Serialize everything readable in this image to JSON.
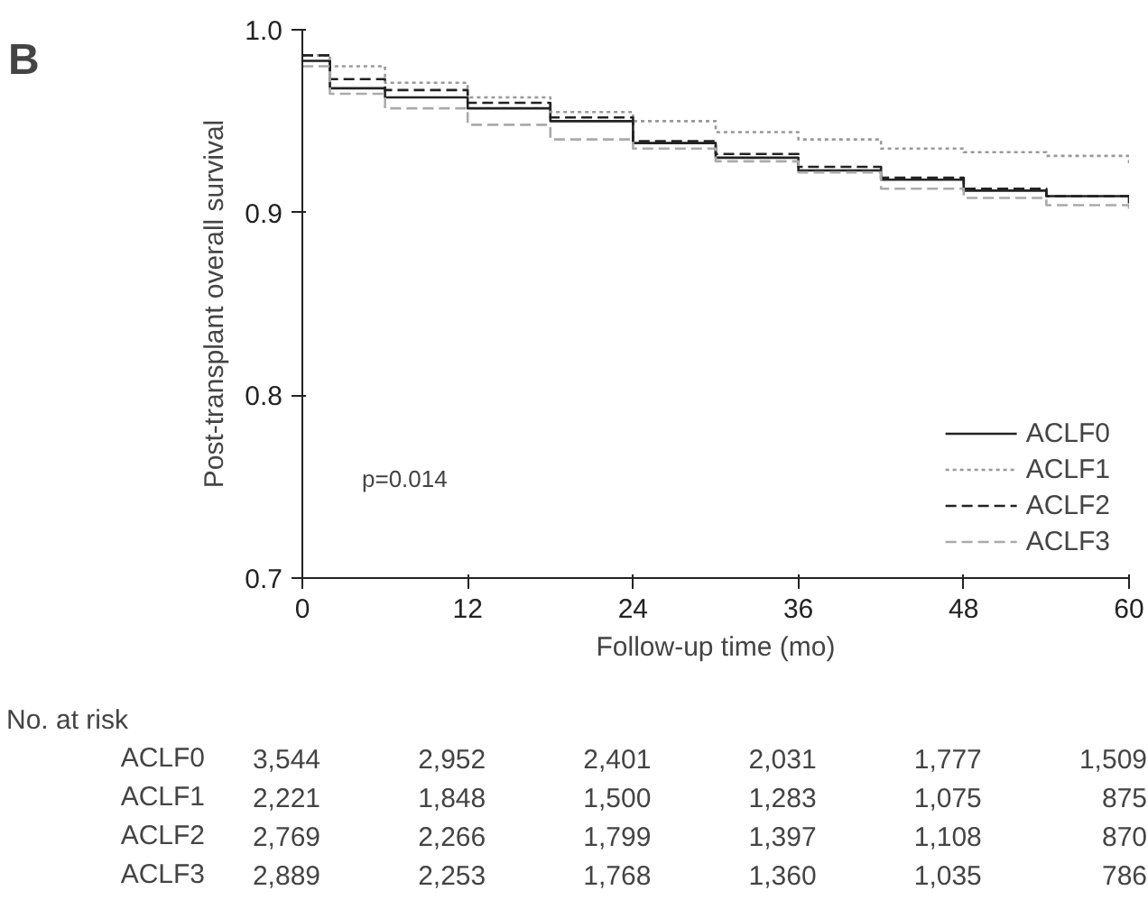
{
  "chart_data": {
    "type": "step",
    "xlabel": "Follow-up time (mo)",
    "ylabel": "Post-transplant overall survival",
    "xlim": [
      0,
      60
    ],
    "ylim": [
      0.7,
      1.0
    ],
    "xticks": [
      0,
      12,
      24,
      36,
      48,
      60
    ],
    "yticks": [
      0.7,
      0.8,
      0.9,
      {
        "value": 1.0,
        "label": "1.0"
      }
    ],
    "x": [
      0,
      2,
      6,
      12,
      18,
      24,
      30,
      36,
      42,
      48,
      54,
      60
    ],
    "series": [
      {
        "name": "ACLF0",
        "color": "#222222",
        "line_style": "solid",
        "values": [
          0.983,
          0.968,
          0.963,
          0.957,
          0.95,
          0.938,
          0.93,
          0.923,
          0.918,
          0.912,
          0.909,
          0.905
        ]
      },
      {
        "name": "ACLF1",
        "color": "#999999",
        "line_style": "dotted",
        "values": [
          0.986,
          0.98,
          0.971,
          0.963,
          0.955,
          0.95,
          0.944,
          0.94,
          0.935,
          0.933,
          0.931,
          0.927
        ]
      },
      {
        "name": "ACLF2",
        "color": "#222222",
        "line_style": "dashed",
        "values": [
          0.986,
          0.973,
          0.967,
          0.96,
          0.952,
          0.939,
          0.932,
          0.925,
          0.919,
          0.913,
          0.909,
          0.906
        ]
      },
      {
        "name": "ACLF3",
        "color": "#aaaaaa",
        "line_style": "dashed",
        "values": [
          0.98,
          0.965,
          0.957,
          0.948,
          0.94,
          0.935,
          0.928,
          0.922,
          0.913,
          0.908,
          0.904,
          0.901
        ]
      }
    ],
    "legend": "bottom right",
    "grid": false,
    "annotations": [
      "B",
      "p=0.014",
      "No. at risk",
      "ACLF0 3,544 2,952 2,401 2,031 1,777 1,509",
      "ACLF1 2,221 1,848 1,500 1,283 1,075 875",
      "ACLF2 2,769 2,266 1,799 1,397 1,108 870",
      "ACLF3 2,889 2,253 1,768 1,360 1,035 786"
    ]
  }
}
